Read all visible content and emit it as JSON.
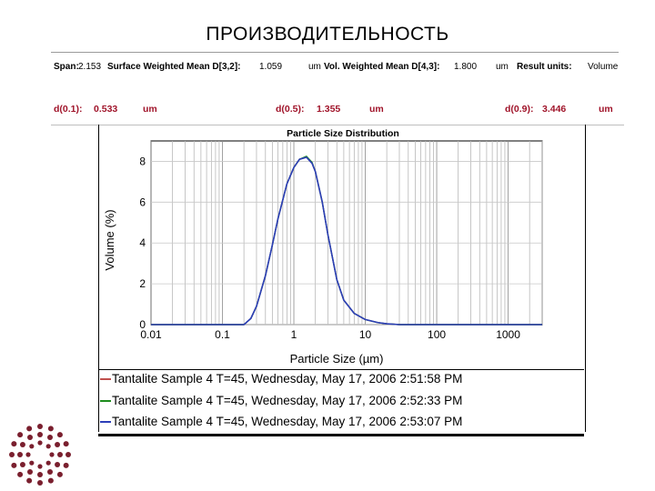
{
  "title": "ПРОИЗВОДИТЕЛЬНОСТЬ",
  "stats": {
    "span_label": "Span:",
    "span_value": "2.153",
    "swm_label": "Surface Weighted Mean D[3,2]:",
    "swm_value": "1.059",
    "swm_unit": "um",
    "vwm_label": "Vol. Weighted Mean D[4,3]:",
    "vwm_value": "1.800",
    "vwm_unit": "um",
    "result_units_label": "Result units:",
    "result_units_value": "Volume",
    "d01_label": "d(0.1):",
    "d01_value": "0.533",
    "d01_unit": "um",
    "d05_label": "d(0.5):",
    "d05_value": "1.355",
    "d05_unit": "um",
    "d09_label": "d(0.9):",
    "d09_value": "3.446",
    "d09_unit": "um"
  },
  "chart_data": {
    "type": "line",
    "title": "Particle Size Distribution",
    "xlabel": "Particle Size (µm)",
    "ylabel": "Volume (%)",
    "x_scale": "log",
    "xlim": [
      0.01,
      3000
    ],
    "ylim": [
      0,
      9
    ],
    "x_ticks": [
      "0.01",
      "0.1",
      "1",
      "10",
      "100",
      "1000"
    ],
    "y_ticks": [
      "0",
      "2",
      "4",
      "6",
      "8"
    ],
    "grid": true,
    "legend_placement": "bottom",
    "series": [
      {
        "name": "Tantalite Sample 4 T=45, Wednesday, May 17, 2006 2:51:58 PM",
        "color": "#c0504d",
        "x": [
          0.01,
          0.1,
          0.2,
          0.25,
          0.3,
          0.4,
          0.5,
          0.6,
          0.8,
          1.0,
          1.2,
          1.5,
          1.8,
          2.0,
          2.5,
          3.0,
          4.0,
          5.0,
          7.0,
          10,
          15,
          20,
          30,
          3000
        ],
        "values": [
          0,
          0,
          0,
          0.3,
          0.9,
          2.4,
          3.9,
          5.2,
          6.9,
          7.7,
          8.1,
          8.2,
          7.9,
          7.5,
          6.0,
          4.4,
          2.2,
          1.2,
          0.55,
          0.25,
          0.1,
          0.04,
          0.0,
          0
        ]
      },
      {
        "name": "Tantalite Sample 4 T=45, Wednesday, May 17, 2006 2:52:33 PM",
        "color": "#1e8c1e",
        "x": [
          0.01,
          0.1,
          0.2,
          0.25,
          0.3,
          0.4,
          0.5,
          0.6,
          0.8,
          1.0,
          1.2,
          1.5,
          1.8,
          2.0,
          2.5,
          3.0,
          4.0,
          5.0,
          7.0,
          10,
          15,
          20,
          30,
          3000
        ],
        "values": [
          0,
          0,
          0,
          0.3,
          0.9,
          2.4,
          3.9,
          5.2,
          6.9,
          7.7,
          8.1,
          8.25,
          7.95,
          7.5,
          6.0,
          4.4,
          2.2,
          1.2,
          0.55,
          0.25,
          0.1,
          0.04,
          0.0,
          0
        ]
      },
      {
        "name": "Tantalite Sample 4 T=45, Wednesday, May 17, 2006 2:53:07 PM",
        "color": "#2c3fb8",
        "x": [
          0.01,
          0.1,
          0.2,
          0.25,
          0.3,
          0.4,
          0.5,
          0.6,
          0.8,
          1.0,
          1.2,
          1.5,
          1.8,
          2.0,
          2.5,
          3.0,
          4.0,
          5.0,
          7.0,
          10,
          15,
          20,
          30,
          3000
        ],
        "values": [
          0,
          0,
          0,
          0.3,
          0.9,
          2.4,
          3.9,
          5.2,
          6.9,
          7.7,
          8.1,
          8.2,
          7.9,
          7.5,
          6.0,
          4.4,
          2.2,
          1.2,
          0.55,
          0.25,
          0.1,
          0.04,
          0.0,
          0
        ]
      }
    ]
  },
  "logo_icon": "dotted-circle-logo-icon",
  "logo_color": "#7a1f2e"
}
